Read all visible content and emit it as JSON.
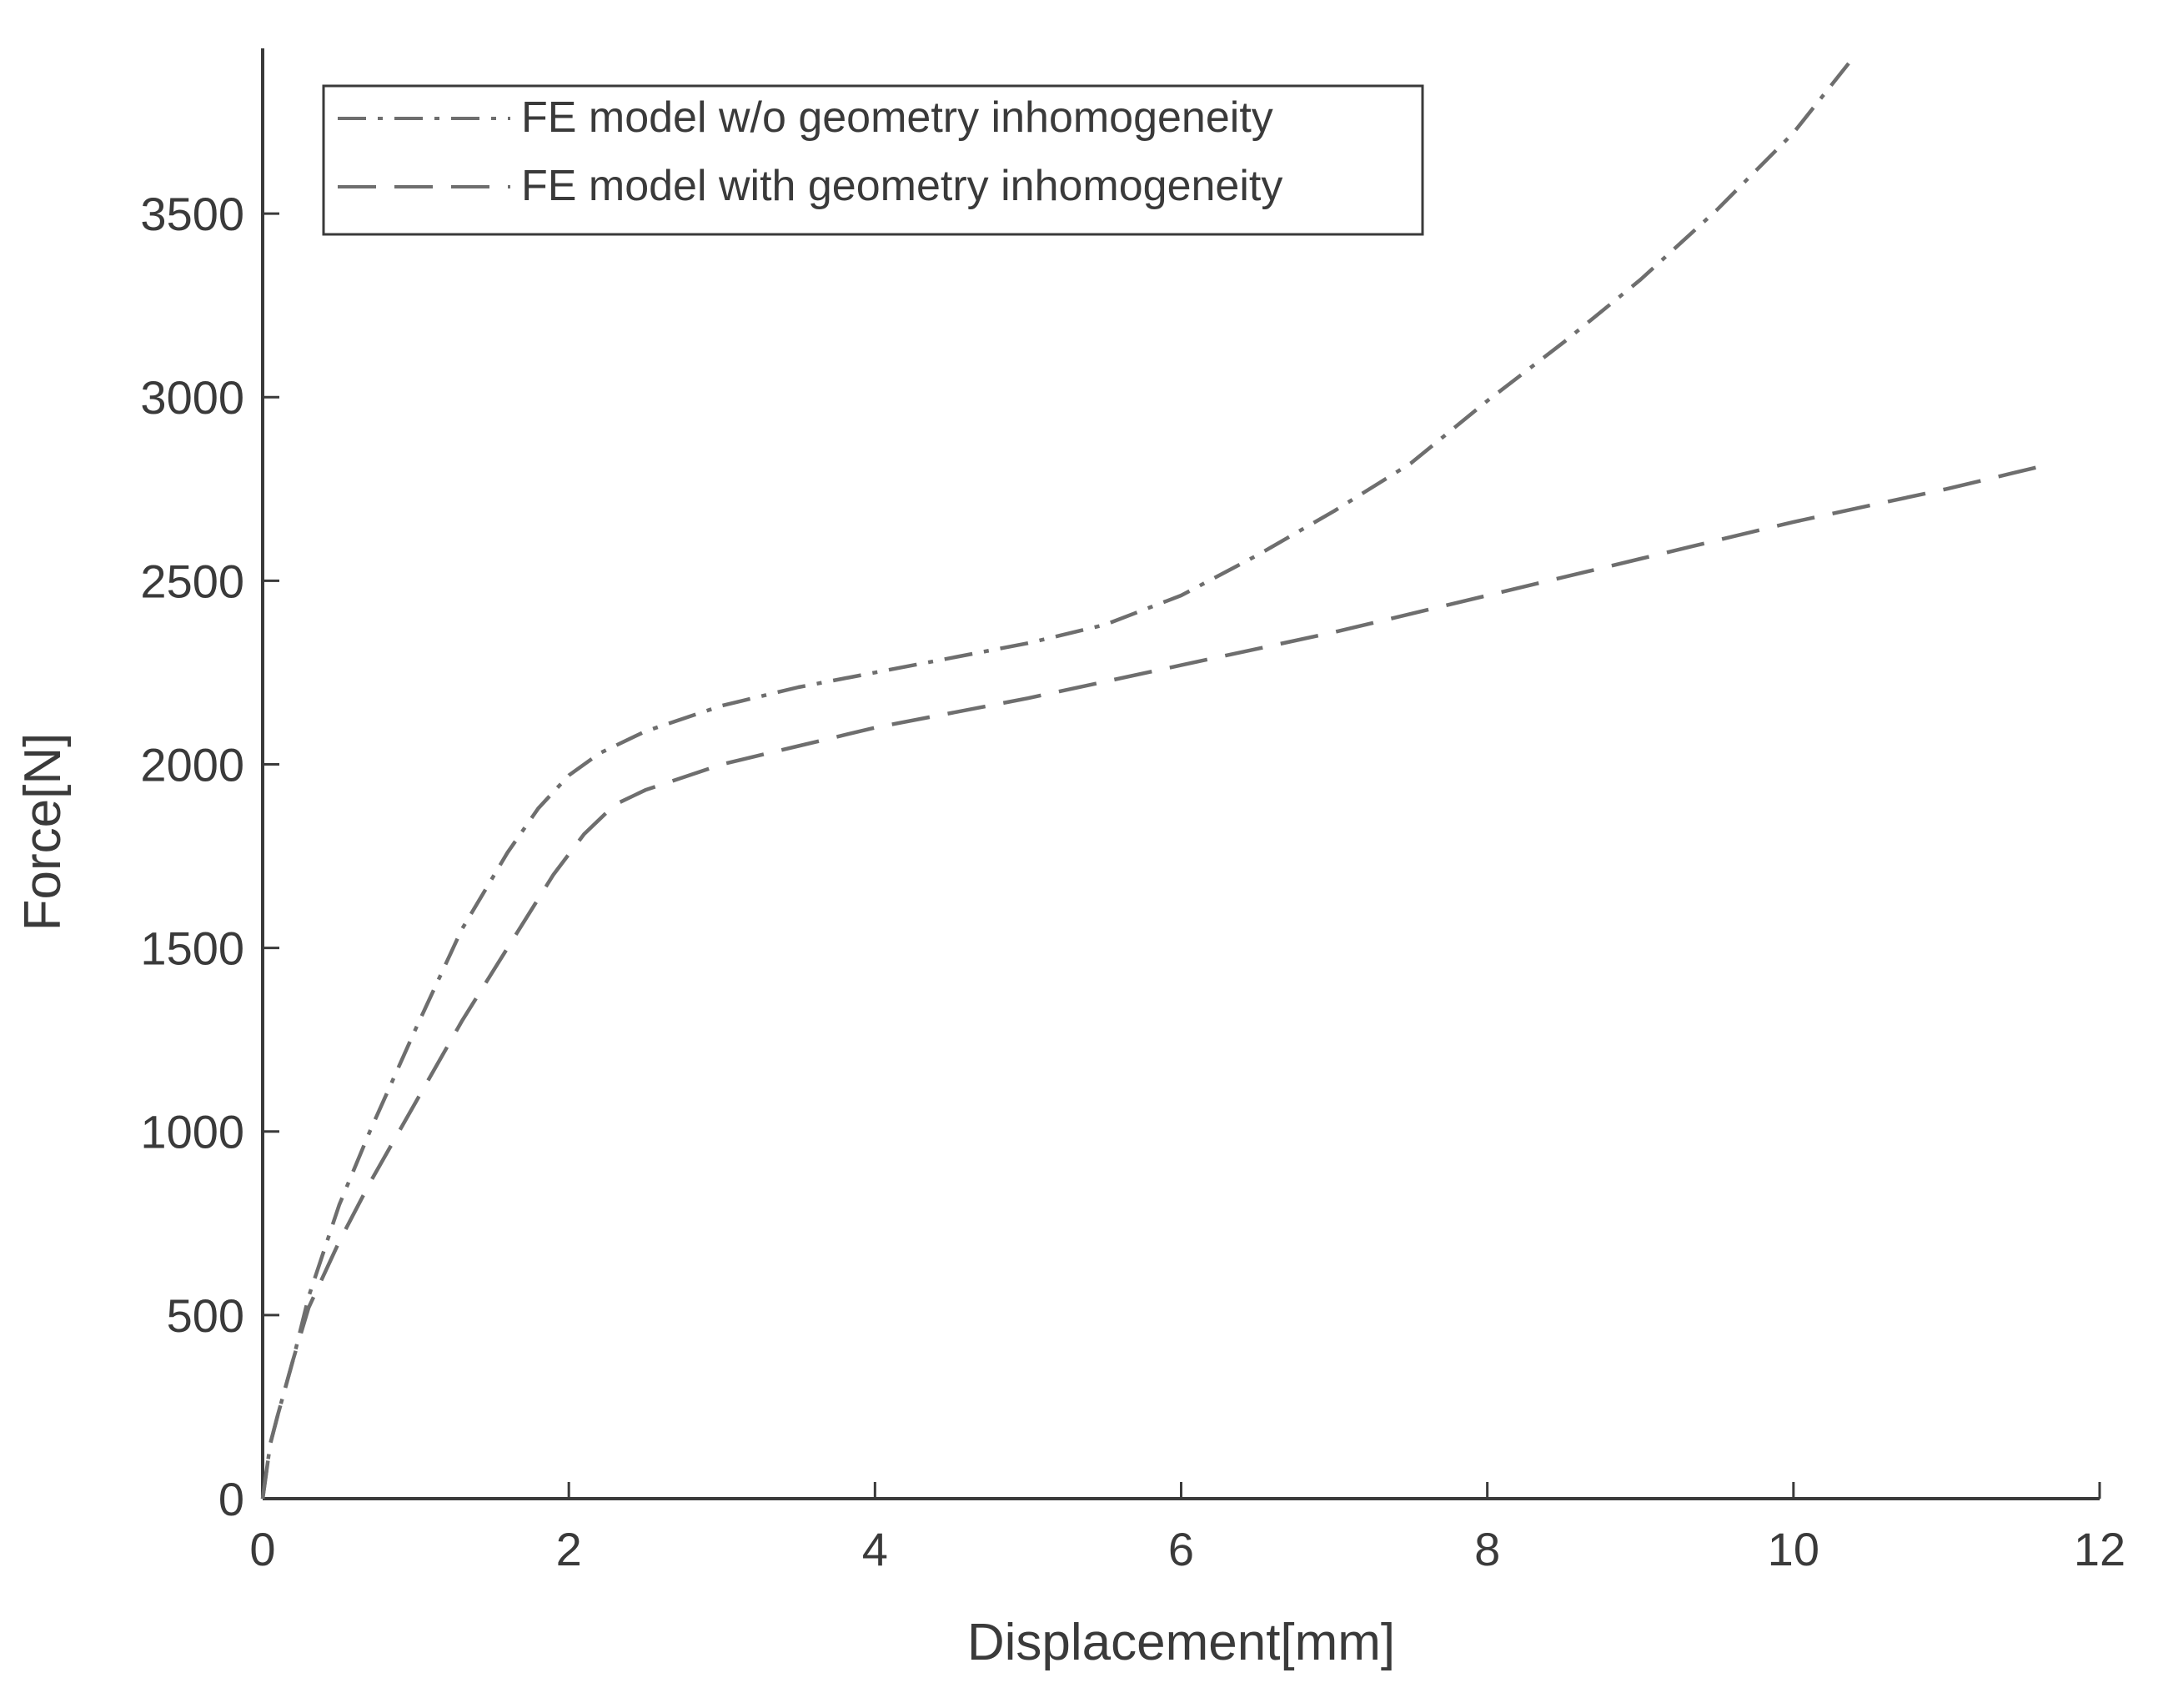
{
  "chart_data": {
    "type": "line",
    "xlabel": "Displacement[mm]",
    "ylabel": "Force[N]",
    "xlim": [
      0,
      12
    ],
    "ylim": [
      0,
      3950
    ],
    "xticks": [
      "0",
      "2",
      "4",
      "6",
      "8",
      "10",
      "12"
    ],
    "yticks": [
      "0",
      "500",
      "1000",
      "1500",
      "2000",
      "2500",
      "3000",
      "3500"
    ],
    "grid": false,
    "legend_position": "top-left",
    "colors": {
      "axis": "#3a3a3a",
      "series_without_inhomogeneity": "#6e6e6e",
      "series_with_inhomogeneity": "#6e6e6e"
    },
    "series": [
      {
        "name": "FE model w/o geometry inhomogeneity",
        "line_style": "dash-dot",
        "x": [
          0,
          0.05,
          0.1,
          0.2,
          0.3,
          0.5,
          0.7,
          1.0,
          1.3,
          1.6,
          1.8,
          2.0,
          2.2,
          2.5,
          3.0,
          3.5,
          4.0,
          4.5,
          5.0,
          5.5,
          6.0,
          6.5,
          7.0,
          7.5,
          8.0,
          8.5,
          9.0,
          9.5,
          10.0,
          10.4
        ],
        "y": [
          0,
          150,
          230,
          380,
          550,
          800,
          1000,
          1280,
          1550,
          1760,
          1880,
          1970,
          2030,
          2090,
          2160,
          2210,
          2250,
          2290,
          2330,
          2380,
          2460,
          2570,
          2690,
          2820,
          2990,
          3150,
          3320,
          3510,
          3720,
          3930
        ]
      },
      {
        "name": "FE model with geometry inhomogeneity",
        "line_style": "dashed",
        "x": [
          0,
          0.05,
          0.1,
          0.2,
          0.3,
          0.5,
          0.7,
          1.0,
          1.3,
          1.6,
          1.9,
          2.1,
          2.3,
          2.5,
          3.0,
          3.5,
          4.0,
          5.0,
          6.0,
          7.0,
          8.0,
          9.0,
          10.0,
          11.0,
          11.6
        ],
        "y": [
          0,
          150,
          230,
          380,
          520,
          700,
          860,
          1080,
          1300,
          1500,
          1700,
          1810,
          1890,
          1930,
          2000,
          2050,
          2100,
          2180,
          2270,
          2360,
          2460,
          2560,
          2660,
          2750,
          2810
        ]
      }
    ]
  }
}
